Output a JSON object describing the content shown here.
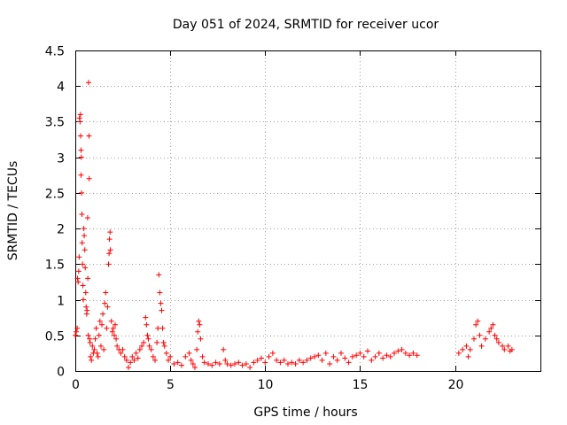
{
  "chart_data": {
    "type": "scatter",
    "title": "Day 051 of 2024, SRMTID for receiver ucor",
    "xlabel": "GPS time / hours",
    "ylabel": "SRMTID / TECUs",
    "xlim": [
      0,
      24.5
    ],
    "ylim": [
      0,
      4.5
    ],
    "xticks": [
      0,
      5,
      10,
      15,
      20
    ],
    "xtick_labels": [
      "0",
      "5",
      "10",
      "15",
      "20"
    ],
    "yticks": [
      0,
      0.5,
      1,
      1.5,
      2,
      2.5,
      3,
      3.5,
      4,
      4.5
    ],
    "ytick_labels": [
      "0",
      "0.5",
      "1",
      "1.5",
      "2",
      "2.5",
      "3",
      "3.5",
      "4",
      "4.5"
    ],
    "grid": true,
    "marker": "plus",
    "series": [
      {
        "name": "SRMTID",
        "color": "#ff0000",
        "points": [
          [
            0.0,
            0.5
          ],
          [
            0.05,
            0.55
          ],
          [
            0.1,
            0.6
          ],
          [
            0.12,
            1.3
          ],
          [
            0.15,
            1.25
          ],
          [
            0.18,
            1.4
          ],
          [
            0.2,
            1.6
          ],
          [
            0.22,
            3.55
          ],
          [
            0.25,
            3.5
          ],
          [
            0.27,
            3.6
          ],
          [
            0.28,
            3.3
          ],
          [
            0.3,
            3.1
          ],
          [
            0.3,
            2.75
          ],
          [
            0.32,
            3.0
          ],
          [
            0.33,
            2.5
          ],
          [
            0.35,
            2.2
          ],
          [
            0.36,
            1.8
          ],
          [
            0.38,
            1.5
          ],
          [
            0.4,
            1.2
          ],
          [
            0.42,
            1.0
          ],
          [
            0.45,
            2.0
          ],
          [
            0.47,
            1.9
          ],
          [
            0.5,
            1.7
          ],
          [
            0.52,
            1.45
          ],
          [
            0.55,
            1.1
          ],
          [
            0.57,
            0.9
          ],
          [
            0.6,
            0.8
          ],
          [
            0.62,
            0.85
          ],
          [
            0.65,
            2.15
          ],
          [
            0.66,
            1.3
          ],
          [
            0.68,
            0.5
          ],
          [
            0.7,
            4.05
          ],
          [
            0.72,
            3.3
          ],
          [
            0.73,
            2.7
          ],
          [
            0.75,
            0.45
          ],
          [
            0.78,
            0.4
          ],
          [
            0.8,
            0.2
          ],
          [
            0.85,
            0.15
          ],
          [
            0.9,
            0.35
          ],
          [
            0.95,
            0.25
          ],
          [
            1.0,
            0.3
          ],
          [
            1.05,
            0.45
          ],
          [
            1.1,
            0.6
          ],
          [
            1.15,
            0.25
          ],
          [
            1.2,
            0.2
          ],
          [
            1.25,
            0.5
          ],
          [
            1.3,
            0.7
          ],
          [
            1.35,
            0.35
          ],
          [
            1.4,
            0.65
          ],
          [
            1.45,
            0.8
          ],
          [
            1.5,
            0.3
          ],
          [
            1.55,
            0.95
          ],
          [
            1.6,
            1.1
          ],
          [
            1.65,
            0.6
          ],
          [
            1.7,
            0.9
          ],
          [
            1.75,
            1.5
          ],
          [
            1.78,
            1.65
          ],
          [
            1.8,
            1.85
          ],
          [
            1.83,
            1.95
          ],
          [
            1.85,
            1.7
          ],
          [
            1.9,
            0.7
          ],
          [
            1.95,
            0.55
          ],
          [
            2.0,
            0.6
          ],
          [
            2.05,
            0.5
          ],
          [
            2.1,
            0.65
          ],
          [
            2.15,
            0.45
          ],
          [
            2.2,
            0.35
          ],
          [
            2.3,
            0.3
          ],
          [
            2.4,
            0.25
          ],
          [
            2.5,
            0.3
          ],
          [
            2.6,
            0.2
          ],
          [
            2.7,
            0.15
          ],
          [
            2.8,
            0.05
          ],
          [
            2.9,
            0.12
          ],
          [
            3.0,
            0.2
          ],
          [
            3.1,
            0.15
          ],
          [
            3.2,
            0.25
          ],
          [
            3.3,
            0.18
          ],
          [
            3.4,
            0.3
          ],
          [
            3.5,
            0.35
          ],
          [
            3.6,
            0.4
          ],
          [
            3.7,
            0.75
          ],
          [
            3.75,
            0.65
          ],
          [
            3.8,
            0.5
          ],
          [
            3.85,
            0.45
          ],
          [
            3.9,
            0.35
          ],
          [
            4.0,
            0.3
          ],
          [
            4.1,
            0.2
          ],
          [
            4.2,
            0.15
          ],
          [
            4.3,
            0.4
          ],
          [
            4.35,
            0.6
          ],
          [
            4.4,
            1.35
          ],
          [
            4.45,
            1.1
          ],
          [
            4.5,
            0.95
          ],
          [
            4.55,
            0.85
          ],
          [
            4.6,
            0.6
          ],
          [
            4.65,
            0.4
          ],
          [
            4.7,
            0.35
          ],
          [
            4.8,
            0.25
          ],
          [
            4.9,
            0.15
          ],
          [
            5.0,
            0.2
          ],
          [
            5.2,
            0.1
          ],
          [
            5.4,
            0.12
          ],
          [
            5.6,
            0.08
          ],
          [
            5.8,
            0.2
          ],
          [
            6.0,
            0.25
          ],
          [
            6.1,
            0.15
          ],
          [
            6.2,
            0.1
          ],
          [
            6.3,
            0.05
          ],
          [
            6.4,
            0.3
          ],
          [
            6.45,
            0.55
          ],
          [
            6.5,
            0.7
          ],
          [
            6.55,
            0.65
          ],
          [
            6.6,
            0.45
          ],
          [
            6.7,
            0.2
          ],
          [
            6.8,
            0.12
          ],
          [
            7.0,
            0.1
          ],
          [
            7.2,
            0.08
          ],
          [
            7.4,
            0.12
          ],
          [
            7.6,
            0.1
          ],
          [
            7.8,
            0.3
          ],
          [
            7.9,
            0.15
          ],
          [
            8.0,
            0.1
          ],
          [
            8.2,
            0.08
          ],
          [
            8.4,
            0.1
          ],
          [
            8.6,
            0.12
          ],
          [
            8.8,
            0.08
          ],
          [
            9.0,
            0.1
          ],
          [
            9.2,
            0.05
          ],
          [
            9.4,
            0.12
          ],
          [
            9.6,
            0.15
          ],
          [
            9.8,
            0.18
          ],
          [
            10.0,
            0.12
          ],
          [
            10.2,
            0.2
          ],
          [
            10.4,
            0.25
          ],
          [
            10.6,
            0.15
          ],
          [
            10.8,
            0.12
          ],
          [
            11.0,
            0.15
          ],
          [
            11.2,
            0.1
          ],
          [
            11.4,
            0.12
          ],
          [
            11.6,
            0.1
          ],
          [
            11.8,
            0.15
          ],
          [
            12.0,
            0.12
          ],
          [
            12.2,
            0.15
          ],
          [
            12.4,
            0.18
          ],
          [
            12.6,
            0.2
          ],
          [
            12.8,
            0.22
          ],
          [
            13.0,
            0.15
          ],
          [
            13.2,
            0.25
          ],
          [
            13.4,
            0.1
          ],
          [
            13.6,
            0.2
          ],
          [
            13.8,
            0.15
          ],
          [
            14.0,
            0.25
          ],
          [
            14.2,
            0.18
          ],
          [
            14.4,
            0.12
          ],
          [
            14.6,
            0.2
          ],
          [
            14.8,
            0.22
          ],
          [
            15.0,
            0.25
          ],
          [
            15.2,
            0.2
          ],
          [
            15.4,
            0.28
          ],
          [
            15.6,
            0.15
          ],
          [
            15.8,
            0.2
          ],
          [
            16.0,
            0.25
          ],
          [
            16.2,
            0.18
          ],
          [
            16.4,
            0.22
          ],
          [
            16.6,
            0.2
          ],
          [
            16.8,
            0.25
          ],
          [
            17.0,
            0.28
          ],
          [
            17.2,
            0.3
          ],
          [
            17.4,
            0.25
          ],
          [
            17.6,
            0.22
          ],
          [
            17.8,
            0.25
          ],
          [
            18.0,
            0.22
          ],
          [
            20.2,
            0.25
          ],
          [
            20.4,
            0.3
          ],
          [
            20.6,
            0.35
          ],
          [
            20.7,
            0.2
          ],
          [
            20.8,
            0.3
          ],
          [
            21.0,
            0.45
          ],
          [
            21.1,
            0.65
          ],
          [
            21.2,
            0.7
          ],
          [
            21.3,
            0.5
          ],
          [
            21.4,
            0.35
          ],
          [
            21.6,
            0.45
          ],
          [
            21.8,
            0.55
          ],
          [
            21.9,
            0.6
          ],
          [
            22.0,
            0.65
          ],
          [
            22.1,
            0.5
          ],
          [
            22.2,
            0.45
          ],
          [
            22.3,
            0.4
          ],
          [
            22.5,
            0.35
          ],
          [
            22.6,
            0.3
          ],
          [
            22.8,
            0.35
          ],
          [
            22.9,
            0.28
          ],
          [
            23.0,
            0.3
          ]
        ]
      }
    ]
  }
}
